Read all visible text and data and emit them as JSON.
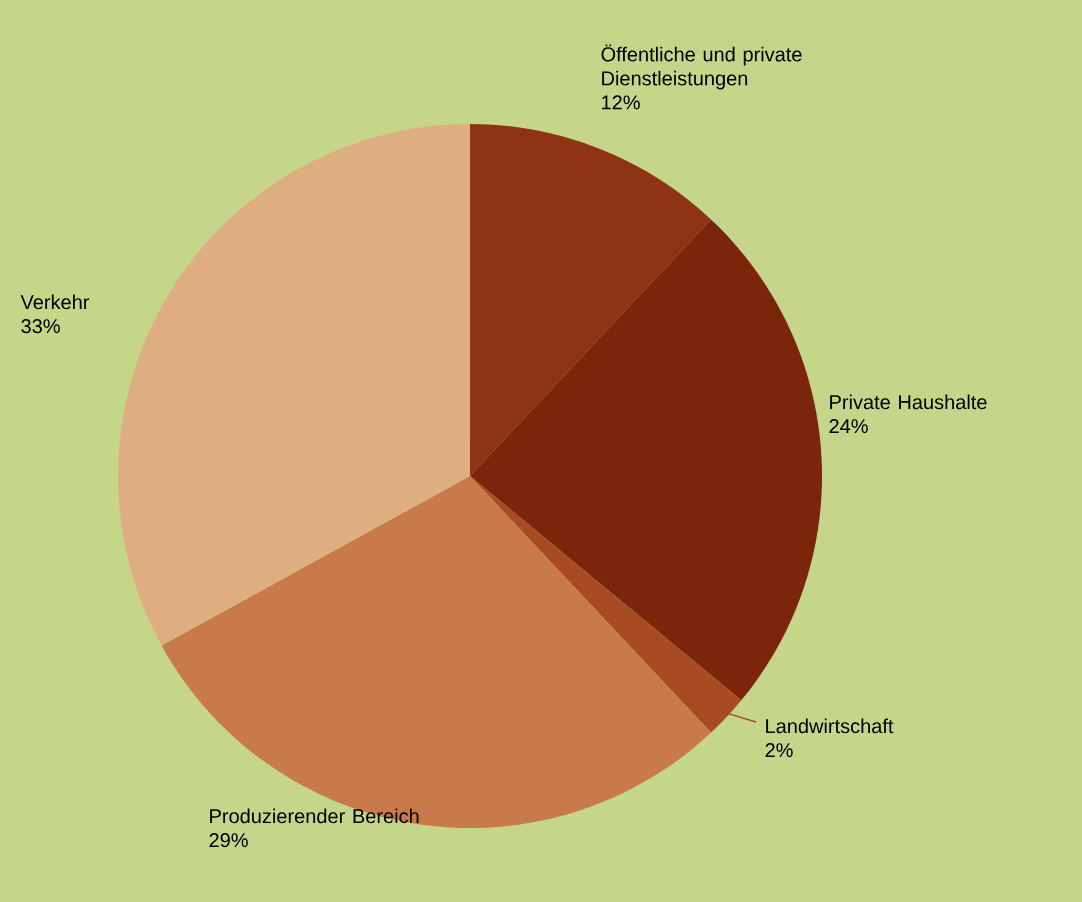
{
  "chart_data": {
    "type": "pie",
    "categories": [
      "Öffentliche und private Dienstleistungen",
      "Private Haushalte",
      "Landwirtschaft",
      "Produzierender Bereich",
      "Verkehr"
    ],
    "values": [
      12,
      24,
      2,
      29,
      33
    ],
    "value_labels": [
      "12%",
      "24%",
      "2%",
      "29%",
      "33%"
    ],
    "colors": [
      "#8e3414",
      "#7b250b",
      "#a84a22",
      "#c87a4a",
      "#dfae80"
    ]
  }
}
